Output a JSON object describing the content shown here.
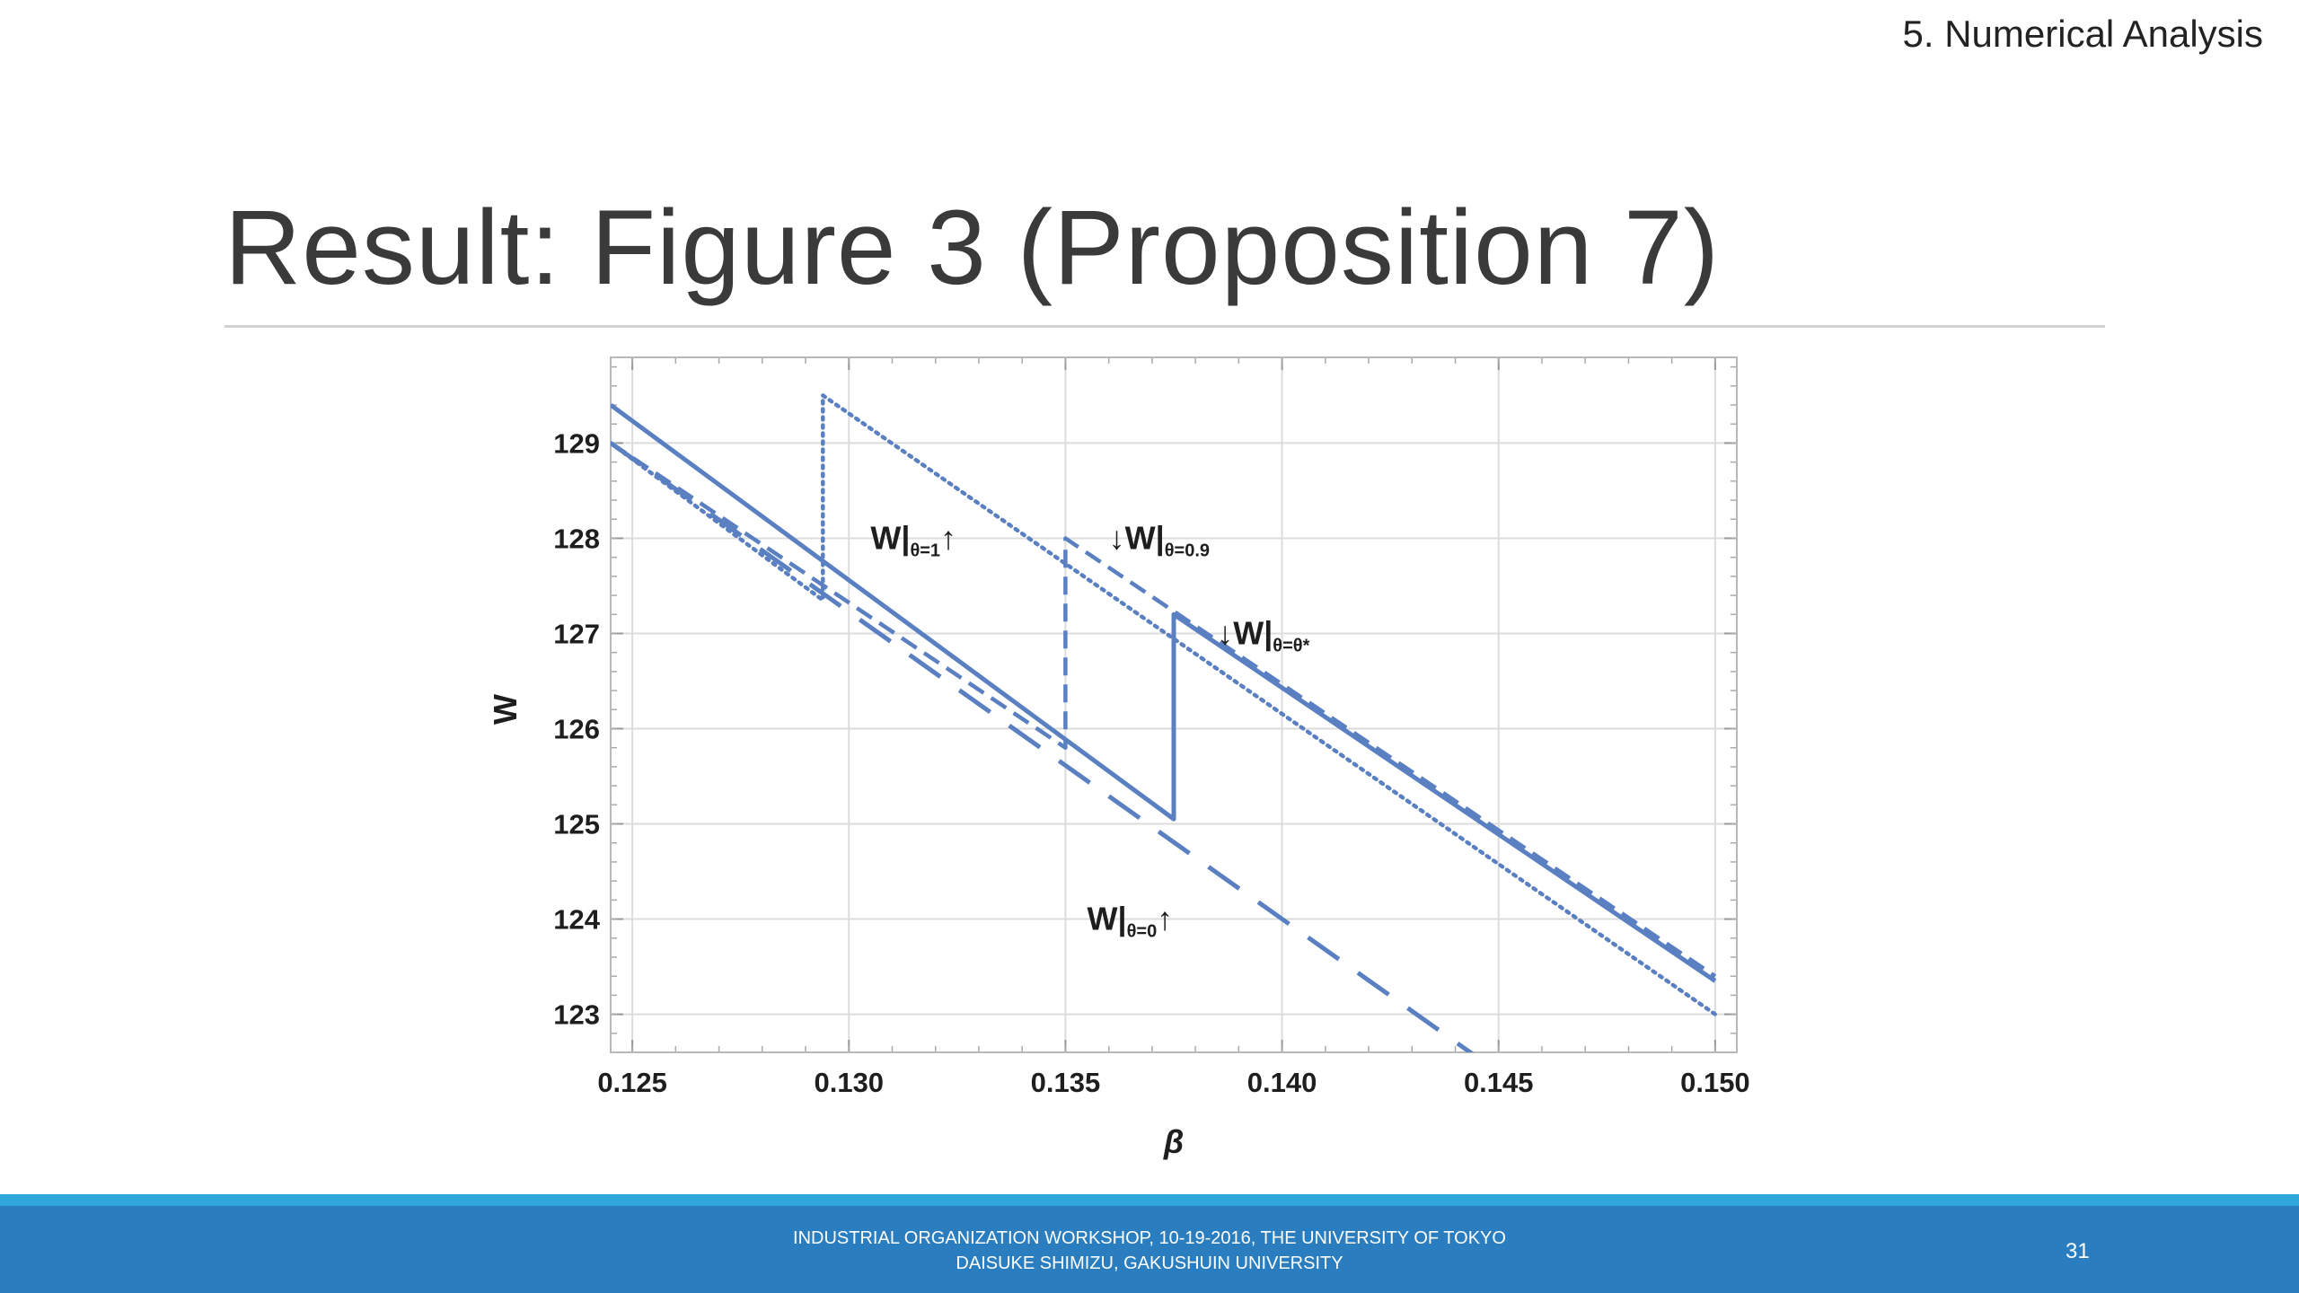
{
  "header": {
    "section": "5. Numerical Analysis",
    "title": "Result: Figure 3 (Proposition 7)"
  },
  "footer": {
    "line1": "INDUSTRIAL ORGANIZATION WORKSHOP, 10-19-2016, THE UNIVERSITY OF TOKYO",
    "line2": "DAISUKE SHIMIZU, GAKUSHUIN UNIVERSITY",
    "page": "31"
  },
  "colors": {
    "series": "#5a80c2",
    "grid": "#dcdcdc",
    "frame": "#b8b8b8",
    "footer_bar": "#2a7dbf",
    "footer_accent": "#2fa6dc"
  },
  "chart_data": {
    "type": "line",
    "title": "",
    "xlabel": "β",
    "ylabel": "W",
    "xlim": [
      0.1245,
      0.1505
    ],
    "ylim": [
      122.6,
      129.9
    ],
    "xticks": [
      0.125,
      0.13,
      0.135,
      0.14,
      0.145,
      0.15
    ],
    "xtick_labels": [
      "0.125",
      "0.130",
      "0.135",
      "0.140",
      "0.145",
      "0.150"
    ],
    "yticks": [
      123,
      124,
      125,
      126,
      127,
      128,
      129
    ],
    "ytick_labels": [
      "123",
      "124",
      "125",
      "126",
      "127",
      "128",
      "129"
    ],
    "grid": true,
    "legend": "none",
    "series": [
      {
        "style": "solid",
        "points": [
          [
            0.1245,
            129.4
          ],
          [
            0.1375,
            125.05
          ],
          [
            0.1375,
            127.2
          ],
          [
            0.15,
            123.35
          ]
        ]
      },
      {
        "style": "dotted",
        "points": [
          [
            0.1245,
            129.0
          ],
          [
            0.1294,
            127.35
          ],
          [
            0.1294,
            129.5
          ],
          [
            0.15,
            123.0
          ]
        ]
      },
      {
        "style": "dashed",
        "points": [
          [
            0.1245,
            129.0
          ],
          [
            0.135,
            125.8
          ],
          [
            0.135,
            128.0
          ],
          [
            0.15,
            123.4
          ]
        ]
      },
      {
        "style": "long-dashed",
        "points": [
          [
            0.1245,
            129.0
          ],
          [
            0.1445,
            122.55
          ]
        ]
      }
    ],
    "annotations": [
      {
        "prefix": "",
        "main": "W",
        "sub": "θ=1",
        "suffix": "↑",
        "x": 0.1305,
        "y": 128.0
      },
      {
        "prefix": "↓",
        "main": "W",
        "sub": "θ=0.9",
        "suffix": "",
        "x": 0.136,
        "y": 128.0
      },
      {
        "prefix": "↓",
        "main": "W",
        "sub": "θ=θ*",
        "suffix": "",
        "x": 0.1385,
        "y": 127.0
      },
      {
        "prefix": "",
        "main": "W",
        "sub": "θ=0",
        "suffix": "↑",
        "x": 0.1355,
        "y": 124.0
      }
    ]
  }
}
